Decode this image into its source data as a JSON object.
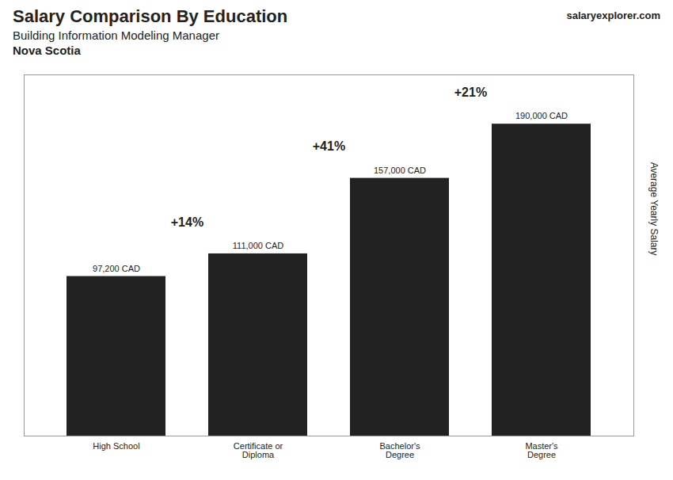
{
  "chart_data": {
    "type": "bar",
    "title": "Salary Comparison By Education",
    "subtitle": "Building Information Modeling Manager",
    "location": "Nova Scotia",
    "source": "salaryexplorer.com",
    "ylabel": "Average Yearly Salary",
    "categories": [
      "High School",
      "Certificate or\nDiploma",
      "Bachelor's\nDegree",
      "Master's\nDegree"
    ],
    "values": [
      97200,
      111000,
      157000,
      190000
    ],
    "value_labels": [
      "97,200 CAD",
      "111,000 CAD",
      "157,000 CAD",
      "190,000 CAD"
    ],
    "data_labels": true,
    "annotations": [
      "+14%",
      "+41%",
      "+21%"
    ],
    "ylim": [
      0,
      220000
    ],
    "yticks": [],
    "tick_labels": "x",
    "grid": false
  }
}
